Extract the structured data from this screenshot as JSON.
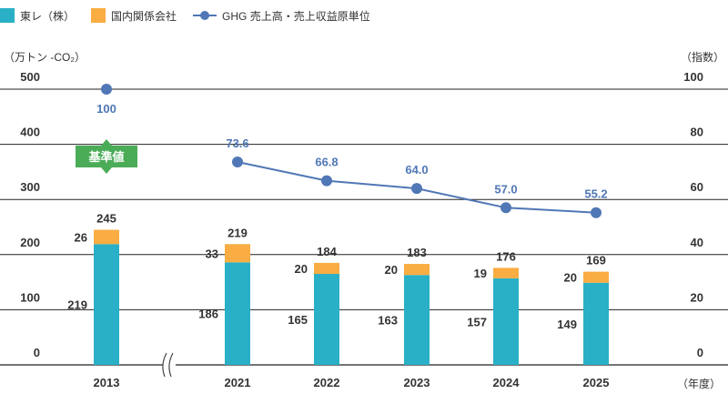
{
  "legend": {
    "toray": "東レ（株）",
    "domestic": "国内関係会社",
    "ghg": "GHG 売上高・売上収益原単位"
  },
  "colors": {
    "toray": "#29b0c6",
    "domestic": "#f9ad42",
    "ghg": "#5077b6",
    "badge": "#4bac58"
  },
  "axis": {
    "left_unit": "（万トン -CO₂）",
    "right_unit": "（指数）",
    "x_unit": "（年度）",
    "left_ticks": [
      "0",
      "100",
      "200",
      "300",
      "400",
      "500"
    ],
    "right_ticks": [
      "0",
      "20",
      "40",
      "60",
      "80",
      "100"
    ]
  },
  "badge_label": "基準値",
  "chart_data": {
    "type": "bar",
    "categories": [
      "2013",
      "2021",
      "2022",
      "2023",
      "2024",
      "2025"
    ],
    "axis_break_after": "2013",
    "ylim": [
      0,
      500
    ],
    "y2lim": [
      0,
      100
    ],
    "series": [
      {
        "name": "東レ（株）",
        "type": "bar",
        "stack": "total",
        "values": [
          219,
          186,
          165,
          163,
          157,
          149
        ],
        "labels": [
          "219",
          "186",
          "165",
          "163",
          "157",
          "149"
        ]
      },
      {
        "name": "国内関係会社",
        "type": "bar",
        "stack": "total",
        "values": [
          26,
          33,
          20,
          20,
          19,
          20
        ],
        "labels": [
          "26",
          "33",
          "20",
          "20",
          "19",
          "20"
        ]
      },
      {
        "name": "GHG 売上高・売上収益原単位",
        "type": "line",
        "axis": "right",
        "values": [
          100,
          73.6,
          66.8,
          64.0,
          57.0,
          55.2
        ],
        "labels": [
          "100",
          "73.6",
          "66.8",
          "64.0",
          "57.0",
          "55.2"
        ]
      }
    ],
    "totals": [
      "245",
      "219",
      "184",
      "183",
      "176",
      "169"
    ],
    "line_connected_from": "2021",
    "grid": true
  }
}
